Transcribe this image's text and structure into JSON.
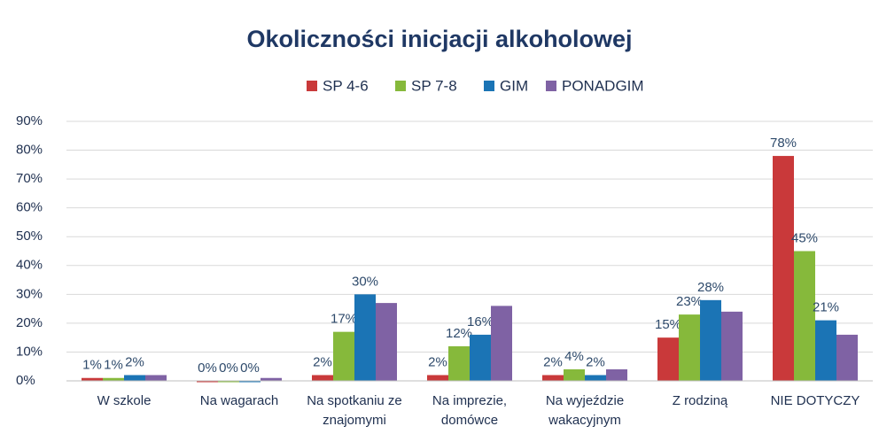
{
  "chart_data": {
    "type": "bar",
    "title": "Okoliczności inicjacji alkoholowej",
    "categories": [
      "W szkole",
      "Na wagarach",
      "Na spotkaniu ze znajomymi",
      "Na imprezie, domówce",
      "Na wyjeździe wakacyjnym",
      "Z rodziną",
      "NIE DOTYCZY"
    ],
    "series": [
      {
        "name": "SP 4-6",
        "color": "#c9393a",
        "values": [
          1,
          0,
          2,
          2,
          2,
          15,
          78
        ],
        "value_labels": [
          "1%",
          "0%",
          "2%",
          "2%",
          "2%",
          "15%",
          "78%"
        ]
      },
      {
        "name": "SP 7-8",
        "color": "#86b93b",
        "values": [
          1,
          0,
          17,
          12,
          4,
          23,
          45
        ],
        "value_labels": [
          "1%",
          "0%",
          "17%",
          "12%",
          "4%",
          "23%",
          "45%"
        ]
      },
      {
        "name": "GIM",
        "color": "#1b74b5",
        "values": [
          2,
          0,
          30,
          16,
          2,
          28,
          21
        ],
        "value_labels": [
          "2%",
          "0%",
          "30%",
          "16%",
          "2%",
          "28%",
          "21%"
        ]
      },
      {
        "name": "PONADGIM",
        "color": "#7f62a4",
        "values": [
          2,
          1,
          27,
          26,
          4,
          24,
          16
        ]
      }
    ],
    "ylim": [
      0,
      90
    ],
    "yticks": [
      {
        "value": 0,
        "label": "0%"
      },
      {
        "value": 10,
        "label": "10%"
      },
      {
        "value": 20,
        "label": "20%"
      },
      {
        "value": 30,
        "label": "30%"
      },
      {
        "value": 40,
        "label": "40%"
      },
      {
        "value": 50,
        "label": "50%"
      },
      {
        "value": 60,
        "label": "60%"
      },
      {
        "value": 70,
        "label": "70%"
      },
      {
        "value": 80,
        "label": "80%"
      },
      {
        "value": 90,
        "label": "90%"
      }
    ],
    "grid": true,
    "legend": "top"
  }
}
